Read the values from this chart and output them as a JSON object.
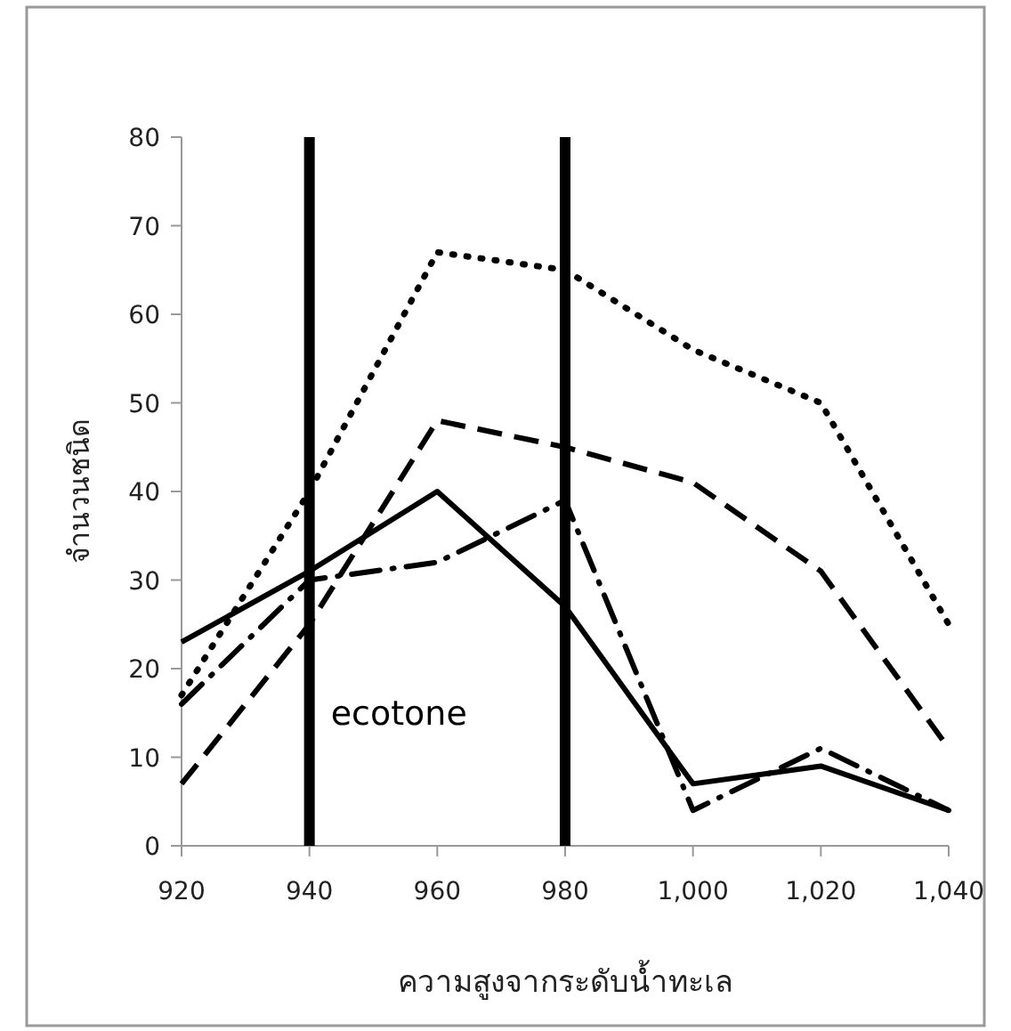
{
  "chart_data": {
    "type": "line",
    "xlabel": "ความสูงจากระดับน้ำทะเล",
    "ylabel": "จำนวนชนิด",
    "x": [
      920,
      940,
      960,
      980,
      1000,
      1020,
      1040
    ],
    "xlim": [
      920,
      1040
    ],
    "xticks": [
      920,
      940,
      960,
      980,
      {
        "value": 1000,
        "label": "1,000"
      },
      {
        "value": 1020,
        "label": "1,020"
      },
      {
        "value": 1040,
        "label": "1,040"
      }
    ],
    "ylim": [
      0,
      80
    ],
    "yticks": [
      0,
      10,
      20,
      30,
      40,
      50,
      60,
      70,
      80
    ],
    "grid": false,
    "marker": "none",
    "series": [
      {
        "color": "#000000",
        "line_style": "dotted",
        "values": [
          17,
          40,
          67,
          65,
          56,
          50,
          25
        ]
      },
      {
        "color": "#000000",
        "line_style": "dashed",
        "values": [
          7,
          25,
          48,
          45,
          41,
          31,
          11
        ]
      },
      {
        "color": "#000000",
        "line_style": "dashdot",
        "values": [
          16,
          30,
          32,
          39,
          4,
          11,
          4
        ]
      },
      {
        "color": "#000000",
        "line_style": "solid",
        "values": [
          23,
          31,
          40,
          27,
          7,
          9,
          4
        ]
      }
    ],
    "ref_lines": [
      {
        "axis": "x",
        "value": 940,
        "color": "#000000"
      },
      {
        "axis": "x",
        "value": 980,
        "color": "#000000"
      }
    ],
    "annotations": [
      "ecotone"
    ]
  }
}
